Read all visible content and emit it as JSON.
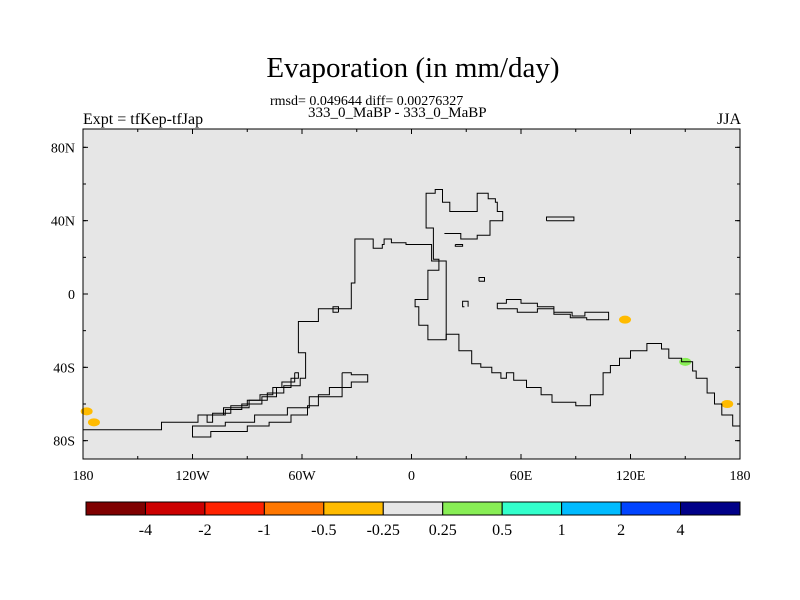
{
  "header": {
    "title": "Evaporation (in mm/day)",
    "stats_line": "rmsd= 0.049644 diff= 0.00276327",
    "case_line": "333_0_MaBP - 333_0_MaBP",
    "left_label": "Expt = tfKep-tfJap",
    "right_label": "JJA"
  },
  "chart_data": {
    "type": "heatmap",
    "title": "Evaporation (in mm/day)",
    "xlim": [
      -180,
      180
    ],
    "ylim": [
      -90,
      90
    ],
    "x_ticks": [
      {
        "value": -180,
        "label": "180"
      },
      {
        "value": -120,
        "label": "120W"
      },
      {
        "value": -60,
        "label": "60W"
      },
      {
        "value": 0,
        "label": "0"
      },
      {
        "value": 60,
        "label": "60E"
      },
      {
        "value": 120,
        "label": "120E"
      },
      {
        "value": 180,
        "label": "180"
      }
    ],
    "y_ticks": [
      {
        "value": 80,
        "label": "80N"
      },
      {
        "value": 40,
        "label": "40N"
      },
      {
        "value": 0,
        "label": "0"
      },
      {
        "value": -40,
        "label": "40S"
      },
      {
        "value": -80,
        "label": "80S"
      }
    ],
    "background_color": "#e6e6e6",
    "colorbar": {
      "colors": [
        "#7f0000",
        "#cc0000",
        "#ff2200",
        "#ff7700",
        "#ffbb00",
        "#e6e6e6",
        "#88ee55",
        "#33ffcc",
        "#00bbff",
        "#0044ff",
        "#000088"
      ],
      "labels": [
        "-4",
        "-2",
        "-1",
        "-0.5",
        "-0.25",
        "0.25",
        "0.5",
        "1",
        "2",
        "4"
      ]
    },
    "anomaly_patches": [
      {
        "lon": -178,
        "lat": -64,
        "value": -0.3
      },
      {
        "lon": -174,
        "lat": -70,
        "value": -0.3
      },
      {
        "lon": 117,
        "lat": -14,
        "value": -0.3
      },
      {
        "lon": 173,
        "lat": -60,
        "value": -0.3
      },
      {
        "lon": 150,
        "lat": -37,
        "value": 0.3
      }
    ],
    "coastlines": [
      [
        [
          -180,
          -74
        ],
        [
          -137,
          -74
        ],
        [
          -137,
          -70
        ],
        [
          -117,
          -70
        ],
        [
          -117,
          -66
        ],
        [
          -103,
          -66
        ],
        [
          -103,
          -62
        ],
        [
          -89,
          -62
        ],
        [
          -89,
          -58
        ],
        [
          -79,
          -58
        ],
        [
          -79,
          -54
        ],
        [
          -70,
          -54
        ],
        [
          -70,
          -50
        ],
        [
          -61,
          -50
        ],
        [
          -61,
          -46
        ],
        [
          -58,
          -46
        ],
        [
          -58,
          -32
        ],
        [
          -62,
          -32
        ],
        [
          -62,
          -15
        ],
        [
          -51,
          -15
        ],
        [
          -51,
          -8
        ],
        [
          -33,
          -8
        ],
        [
          -33,
          6
        ],
        [
          -31,
          6
        ],
        [
          -31,
          30
        ],
        [
          -21,
          30
        ],
        [
          -21,
          25
        ],
        [
          -16,
          25
        ],
        [
          -16,
          27
        ],
        [
          -15,
          27
        ],
        [
          -15,
          30
        ],
        [
          -11,
          30
        ],
        [
          -11,
          28
        ],
        [
          -3,
          28
        ],
        [
          -3,
          27
        ],
        [
          11,
          27
        ],
        [
          11,
          18
        ],
        [
          19,
          18
        ],
        [
          19,
          -25
        ],
        [
          9,
          -25
        ],
        [
          9,
          -17
        ],
        [
          4,
          -17
        ],
        [
          4,
          -7
        ],
        [
          2,
          -7
        ],
        [
          2,
          -3
        ],
        [
          9,
          -3
        ],
        [
          9,
          13
        ],
        [
          15,
          13
        ],
        [
          15,
          19
        ],
        [
          12,
          19
        ],
        [
          12,
          36
        ],
        [
          8,
          36
        ],
        [
          8,
          55
        ],
        [
          13,
          55
        ],
        [
          13,
          57
        ],
        [
          17,
          57
        ],
        [
          17,
          50
        ],
        [
          21,
          50
        ],
        [
          21,
          45
        ],
        [
          36,
          45
        ],
        [
          36,
          55
        ],
        [
          42,
          55
        ],
        [
          42,
          52
        ],
        [
          46,
          52
        ],
        [
          46,
          50
        ],
        [
          47,
          50
        ],
        [
          47,
          45
        ],
        [
          50,
          45
        ],
        [
          50,
          40
        ],
        [
          43,
          40
        ],
        [
          43,
          32
        ],
        [
          36,
          32
        ],
        [
          36,
          30
        ],
        [
          27,
          30
        ],
        [
          27,
          33
        ],
        [
          18,
          33
        ]
      ],
      [
        [
          19,
          -25
        ],
        [
          19,
          -22
        ],
        [
          26,
          -22
        ],
        [
          26,
          -31
        ],
        [
          33,
          -31
        ],
        [
          33,
          -38
        ],
        [
          38,
          -38
        ],
        [
          38,
          -40
        ],
        [
          44,
          -40
        ],
        [
          44,
          -43
        ],
        [
          49,
          -43
        ],
        [
          49,
          -46
        ],
        [
          52,
          -46
        ],
        [
          52,
          -43
        ],
        [
          56,
          -43
        ],
        [
          56,
          -47
        ],
        [
          63,
          -47
        ],
        [
          63,
          -51
        ],
        [
          71,
          -51
        ],
        [
          71,
          -55
        ],
        [
          77,
          -55
        ],
        [
          77,
          -59
        ],
        [
          90,
          -59
        ],
        [
          90,
          -61
        ],
        [
          98,
          -61
        ],
        [
          98,
          -55
        ],
        [
          105,
          -55
        ],
        [
          105,
          -43
        ],
        [
          109,
          -43
        ],
        [
          109,
          -39
        ],
        [
          114,
          -39
        ],
        [
          114,
          -35
        ],
        [
          120,
          -35
        ],
        [
          120,
          -31
        ],
        [
          129,
          -31
        ],
        [
          129,
          -27
        ],
        [
          137,
          -27
        ],
        [
          137,
          -30
        ],
        [
          141,
          -30
        ],
        [
          141,
          -35
        ],
        [
          148,
          -35
        ],
        [
          148,
          -37
        ],
        [
          154,
          -37
        ],
        [
          154,
          -42
        ],
        [
          156,
          -42
        ],
        [
          156,
          -46
        ],
        [
          162,
          -46
        ],
        [
          162,
          -54
        ],
        [
          166,
          -54
        ],
        [
          166,
          -60
        ],
        [
          170,
          -60
        ],
        [
          170,
          -66
        ],
        [
          176,
          -66
        ],
        [
          176,
          -72
        ],
        [
          180,
          -72
        ]
      ],
      [
        [
          47,
          -8
        ],
        [
          47,
          -5
        ],
        [
          52,
          -5
        ],
        [
          52,
          -3
        ],
        [
          60,
          -3
        ],
        [
          60,
          -5
        ],
        [
          69,
          -5
        ],
        [
          69,
          -7
        ],
        [
          78,
          -7
        ],
        [
          78,
          -10
        ],
        [
          88,
          -10
        ],
        [
          88,
          -12
        ],
        [
          95,
          -12
        ],
        [
          95,
          -10
        ],
        [
          108,
          -10
        ],
        [
          108,
          -14
        ],
        [
          96,
          -14
        ],
        [
          96,
          -13
        ],
        [
          87,
          -13
        ],
        [
          87,
          -11
        ],
        [
          78,
          -11
        ],
        [
          78,
          -8
        ],
        [
          69,
          -8
        ],
        [
          69,
          -10
        ],
        [
          58,
          -10
        ],
        [
          58,
          -8
        ],
        [
          47,
          -8
        ]
      ],
      [
        [
          29,
          -7
        ],
        [
          28,
          -7
        ],
        [
          28,
          -4
        ],
        [
          31,
          -4
        ],
        [
          31,
          -7
        ]
      ],
      [
        [
          37,
          7
        ],
        [
          37,
          9
        ],
        [
          40,
          9
        ],
        [
          40,
          7
        ],
        [
          37,
          7
        ]
      ],
      [
        [
          24,
          27
        ],
        [
          24,
          26
        ],
        [
          28,
          26
        ],
        [
          28,
          27
        ],
        [
          24,
          27
        ]
      ],
      [
        [
          74,
          40
        ],
        [
          74,
          42
        ],
        [
          89,
          42
        ],
        [
          89,
          40
        ],
        [
          74,
          40
        ]
      ],
      [
        [
          -40,
          -10
        ],
        [
          -40,
          -7
        ],
        [
          -43,
          -7
        ],
        [
          -43,
          -10
        ],
        [
          -40,
          -10
        ]
      ],
      [
        [
          -38,
          -43
        ],
        [
          -38,
          -56
        ],
        [
          -56,
          -56
        ],
        [
          -56,
          -62
        ],
        [
          -68,
          -62
        ],
        [
          -68,
          -66
        ],
        [
          -86,
          -66
        ],
        [
          -86,
          -70
        ],
        [
          -102,
          -70
        ],
        [
          -102,
          -72
        ],
        [
          -120,
          -72
        ],
        [
          -120,
          -78
        ],
        [
          -110,
          -78
        ],
        [
          -110,
          -75
        ],
        [
          -90,
          -75
        ],
        [
          -90,
          -72
        ],
        [
          -78,
          -72
        ],
        [
          -78,
          -70
        ],
        [
          -66,
          -70
        ],
        [
          -66,
          -66
        ],
        [
          -57,
          -66
        ],
        [
          -57,
          -61
        ],
        [
          -51,
          -61
        ],
        [
          -51,
          -55
        ],
        [
          -45,
          -55
        ],
        [
          -45,
          -51
        ],
        [
          -33,
          -51
        ],
        [
          -33,
          -48
        ],
        [
          -24,
          -48
        ],
        [
          -24,
          -44
        ],
        [
          -33,
          -44
        ],
        [
          -33,
          -43
        ],
        [
          -38,
          -43
        ]
      ],
      [
        [
          -64,
          -43
        ],
        [
          -64,
          -48
        ],
        [
          -71,
          -48
        ],
        [
          -71,
          -51
        ],
        [
          -76,
          -51
        ],
        [
          -76,
          -55
        ],
        [
          -83,
          -55
        ],
        [
          -83,
          -58
        ],
        [
          -90,
          -58
        ],
        [
          -90,
          -61
        ],
        [
          -99,
          -61
        ],
        [
          -99,
          -65
        ],
        [
          -109,
          -65
        ],
        [
          -109,
          -70
        ],
        [
          -112,
          -70
        ],
        [
          -112,
          -66
        ],
        [
          -102,
          -66
        ],
        [
          -102,
          -63
        ],
        [
          -93,
          -63
        ],
        [
          -93,
          -60
        ],
        [
          -82,
          -60
        ],
        [
          -82,
          -56
        ],
        [
          -74,
          -56
        ],
        [
          -74,
          -51
        ],
        [
          -66,
          -51
        ],
        [
          -66,
          -46
        ],
        [
          -62,
          -46
        ],
        [
          -62,
          -43
        ],
        [
          -64,
          -43
        ]
      ]
    ]
  }
}
